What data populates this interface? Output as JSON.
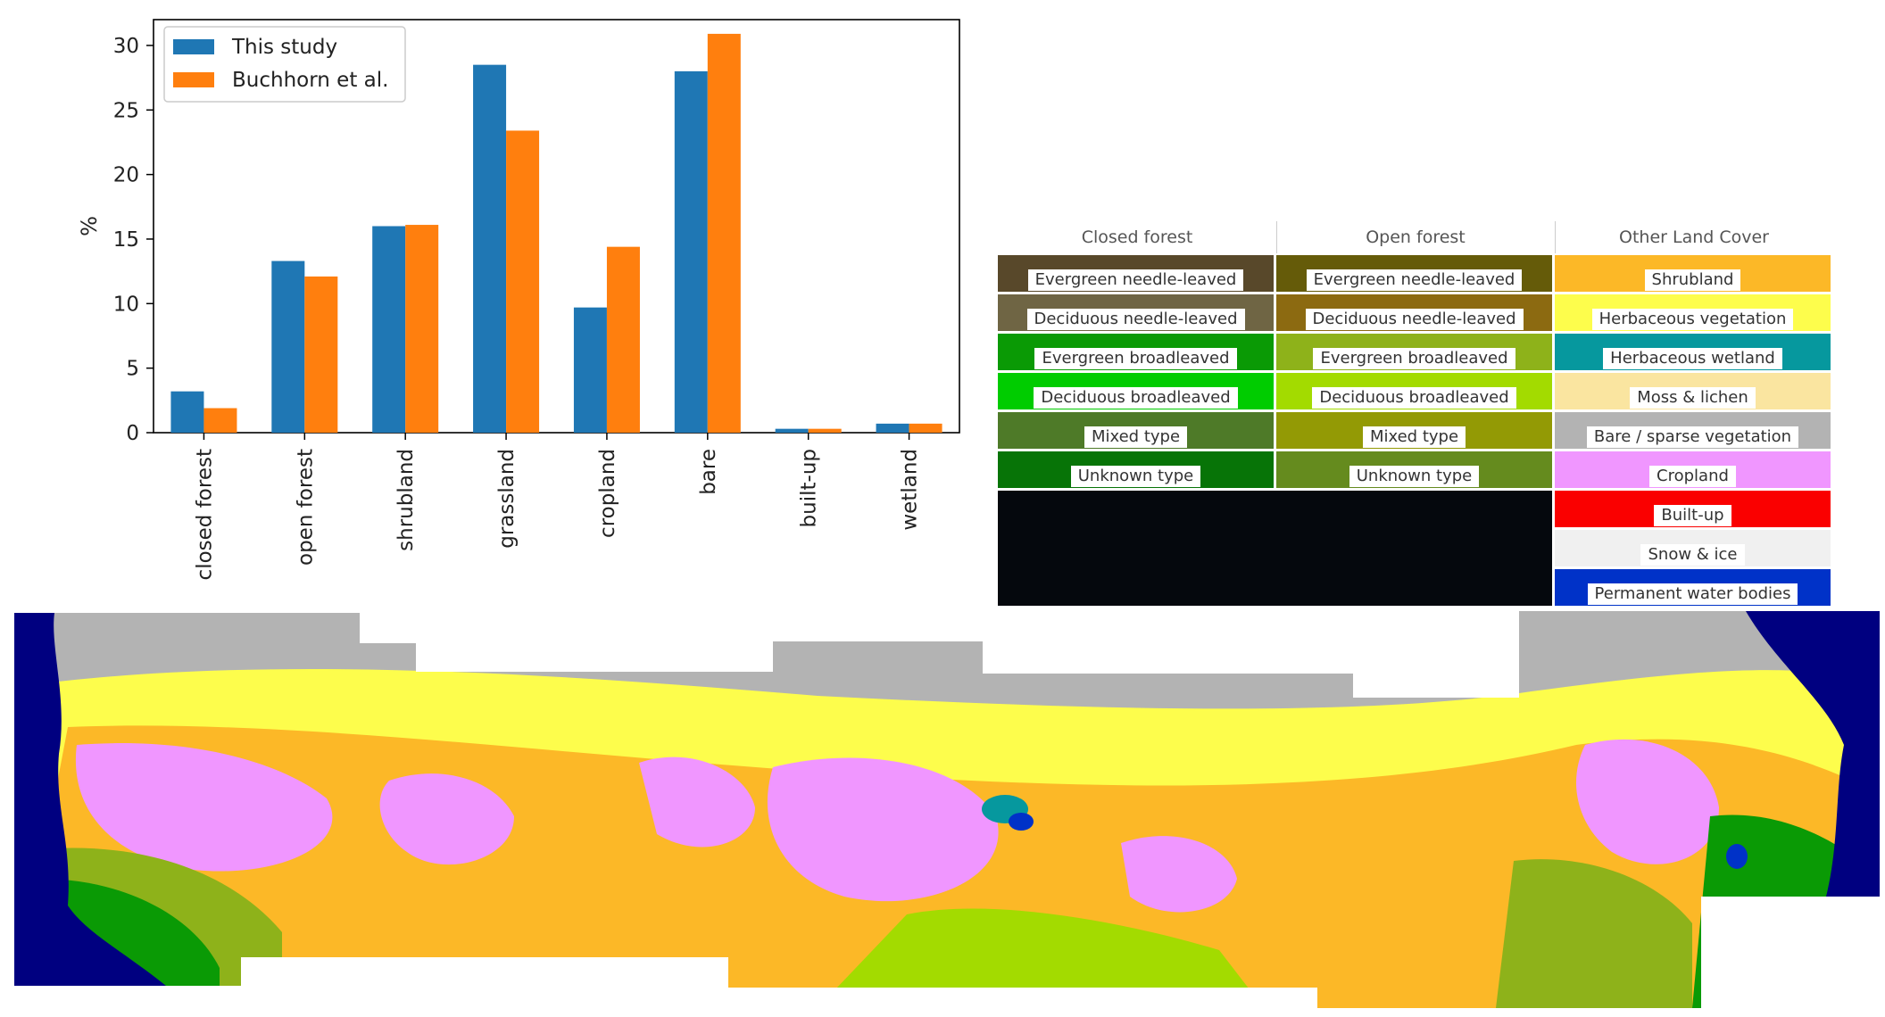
{
  "chart_data": {
    "type": "bar",
    "categories": [
      "closed forest",
      "open forest",
      "shrubland",
      "grassland",
      "cropland",
      "bare",
      "built-up",
      "wetland"
    ],
    "series": [
      {
        "name": "This study",
        "color": "#1f77b4",
        "values": [
          3.2,
          13.3,
          16.0,
          28.5,
          9.7,
          28.0,
          0.3,
          0.7
        ]
      },
      {
        "name": "Buchhorn et al.",
        "color": "#ff7f0e",
        "values": [
          1.9,
          12.1,
          16.1,
          23.4,
          14.4,
          30.9,
          0.3,
          0.7
        ]
      }
    ],
    "ylabel": "%",
    "ylim": [
      0,
      32
    ],
    "yticks": [
      0,
      5,
      10,
      15,
      20,
      25,
      30
    ],
    "legend": "top-left",
    "grid": false
  },
  "legend_table": {
    "columns": [
      {
        "header": "Closed forest",
        "items": [
          {
            "label": "Evergreen needle-leaved",
            "color": "#58482a"
          },
          {
            "label": "Deciduous needle-leaved",
            "color": "#6f6544"
          },
          {
            "label": "Evergreen broadleaved",
            "color": "#0a9a05"
          },
          {
            "label": "Deciduous broadleaved",
            "color": "#00cc00"
          },
          {
            "label": "Mixed type",
            "color": "#4e7a28"
          },
          {
            "label": "Unknown type",
            "color": "#077407"
          }
        ]
      },
      {
        "header": "Open forest",
        "items": [
          {
            "label": "Evergreen needle-leaved",
            "color": "#655b09"
          },
          {
            "label": "Deciduous needle-leaved",
            "color": "#8c6a11"
          },
          {
            "label": "Evergreen broadleaved",
            "color": "#8eb21a"
          },
          {
            "label": "Deciduous broadleaved",
            "color": "#a3db00"
          },
          {
            "label": "Mixed type",
            "color": "#939a05"
          },
          {
            "label": "Unknown type",
            "color": "#658b1e"
          }
        ]
      },
      {
        "header": "Other Land Cover",
        "items": [
          {
            "label": "Shrubland",
            "color": "#fcb827"
          },
          {
            "label": "Herbaceous vegetation",
            "color": "#fdfd4c"
          },
          {
            "label": "Herbaceous wetland",
            "color": "#06989e"
          },
          {
            "label": "Moss & lichen",
            "color": "#fae5a0"
          },
          {
            "label": "Bare / sparse vegetation",
            "color": "#b3b3b3"
          },
          {
            "label": "Cropland",
            "color": "#f096ff"
          },
          {
            "label": "Built-up",
            "color": "#fa0000"
          },
          {
            "label": "Snow & ice",
            "color": "#f0f0f0"
          },
          {
            "label": "Permanent water bodies",
            "color": "#0032c8"
          }
        ]
      }
    ]
  }
}
